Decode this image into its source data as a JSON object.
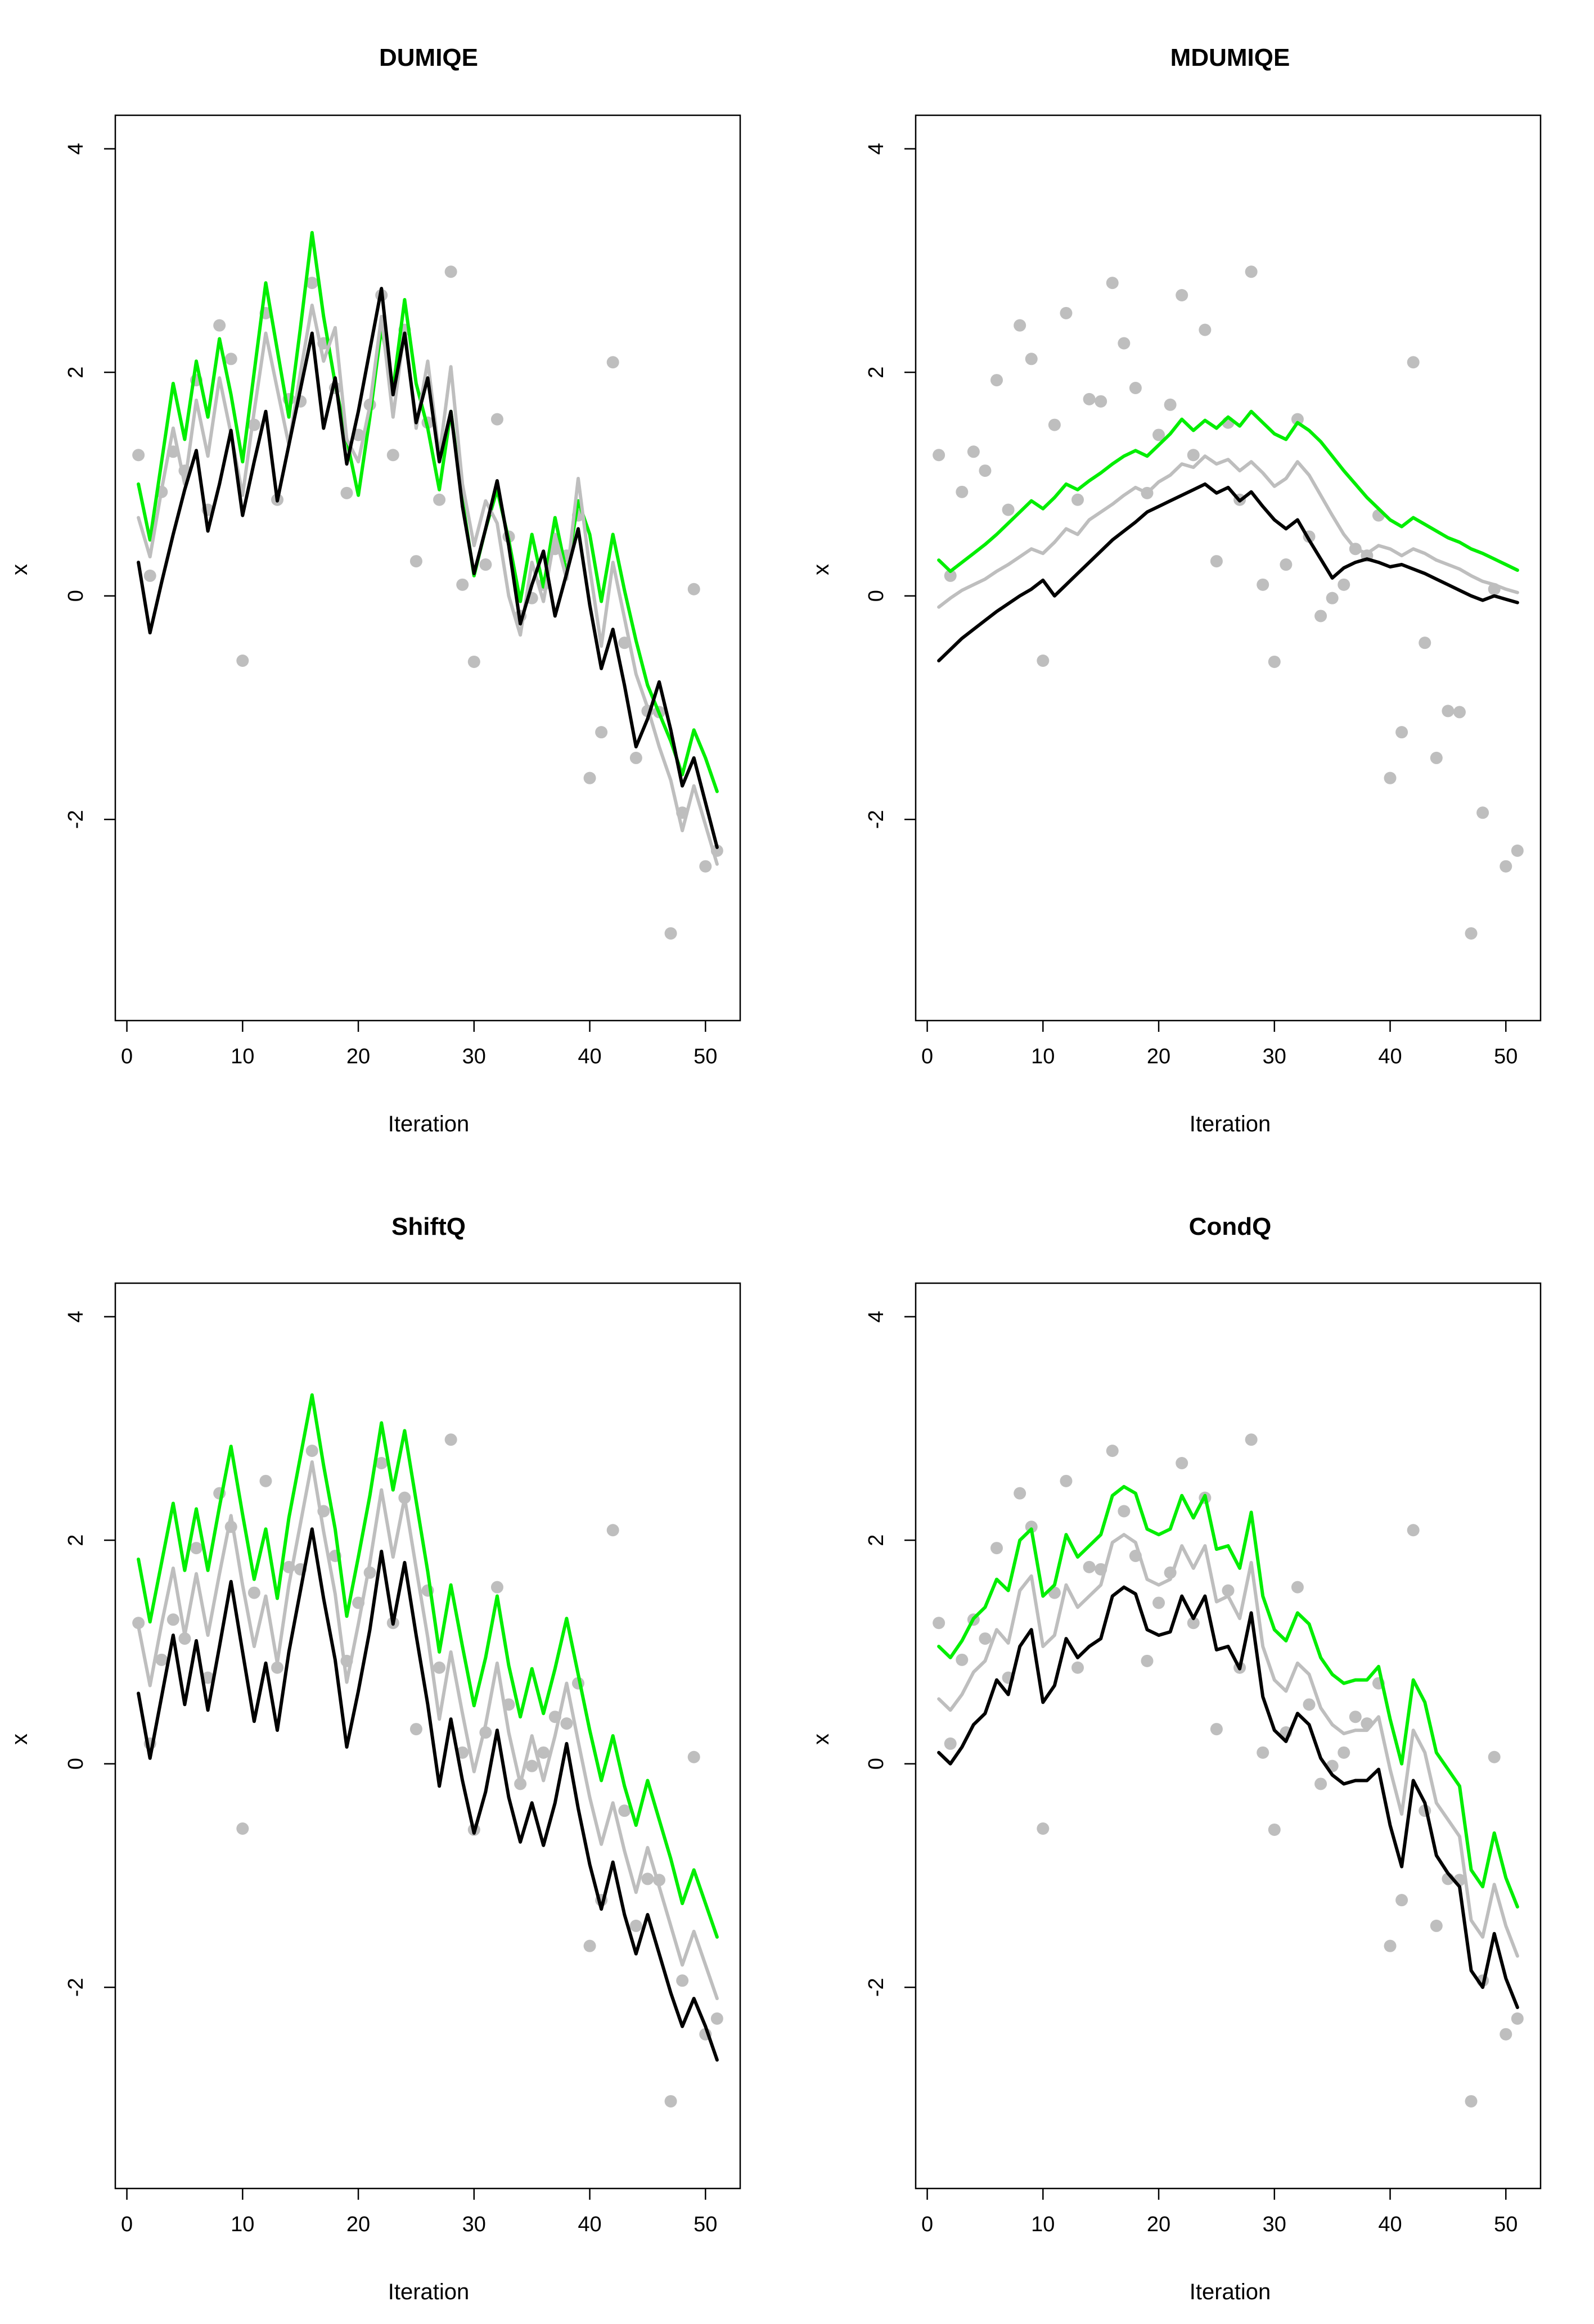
{
  "colors": {
    "points": "#bebebe",
    "green": "#00ee00",
    "gray": "#bebebe",
    "black": "#000000"
  },
  "chart_data": [
    {
      "type": "scatter",
      "title": "DUMIQE",
      "xlabel": "Iteration",
      "ylabel": "x",
      "xlim": [
        -1,
        53
      ],
      "ylim": [
        -3.8,
        4.3
      ],
      "xticks": [
        0,
        10,
        20,
        30,
        40,
        50
      ],
      "yticks": [
        -2,
        0,
        2,
        4
      ],
      "points": [
        1.26,
        0.18,
        0.93,
        1.29,
        1.12,
        1.93,
        0.77,
        2.42,
        2.12,
        -0.58,
        1.53,
        2.53,
        0.86,
        1.76,
        1.74,
        2.8,
        2.26,
        1.86,
        0.92,
        1.44,
        1.71,
        2.69,
        1.26,
        2.38,
        0.31,
        1.55,
        0.86,
        2.9,
        0.1,
        -0.59,
        0.28,
        1.58,
        0.53,
        -0.18,
        -0.02,
        0.1,
        0.42,
        0.36,
        0.72,
        -1.63,
        -1.22,
        2.09,
        -0.42,
        -1.45,
        -1.03,
        -1.04,
        -3.02,
        -1.94,
        0.06,
        -2.42,
        -2.28
      ],
      "series": [
        {
          "name": "green",
          "values": [
            1.0,
            0.5,
            1.2,
            1.9,
            1.4,
            2.1,
            1.6,
            2.3,
            1.8,
            1.2,
            2.0,
            2.8,
            2.2,
            1.6,
            2.4,
            3.25,
            2.5,
            1.9,
            1.4,
            0.9,
            1.6,
            2.4,
            1.85,
            2.65,
            1.9,
            1.5,
            0.95,
            1.65,
            0.85,
            0.18,
            0.6,
            0.95,
            0.5,
            -0.05,
            0.55,
            0.08,
            0.7,
            0.2,
            0.85,
            0.55,
            -0.05,
            0.55,
            0.05,
            -0.4,
            -0.8,
            -1.05,
            -1.3,
            -1.6,
            -1.2,
            -1.45,
            -1.75
          ]
        },
        {
          "name": "gray",
          "values": [
            0.7,
            0.35,
            0.95,
            1.5,
            1.0,
            1.75,
            1.25,
            1.95,
            1.45,
            0.9,
            1.65,
            2.35,
            1.85,
            1.35,
            2.0,
            2.6,
            2.1,
            2.4,
            1.4,
            1.2,
            1.7,
            2.5,
            1.6,
            2.4,
            1.5,
            2.1,
            1.25,
            2.05,
            1.0,
            0.45,
            0.85,
            0.65,
            0.0,
            -0.35,
            0.3,
            -0.05,
            0.55,
            0.15,
            1.05,
            0.25,
            -0.45,
            0.3,
            -0.2,
            -0.7,
            -1.0,
            -1.35,
            -1.65,
            -2.1,
            -1.7,
            -2.05,
            -2.4
          ]
        },
        {
          "name": "black",
          "values": [
            0.3,
            -0.33,
            0.12,
            0.55,
            0.95,
            1.3,
            0.58,
            1.0,
            1.48,
            0.72,
            1.2,
            1.65,
            0.85,
            1.35,
            1.85,
            2.35,
            1.5,
            1.95,
            1.18,
            1.65,
            2.2,
            2.75,
            1.8,
            2.35,
            1.55,
            1.95,
            1.2,
            1.65,
            0.8,
            0.2,
            0.6,
            1.03,
            0.45,
            -0.25,
            0.1,
            0.4,
            -0.18,
            0.2,
            0.6,
            -0.08,
            -0.65,
            -0.3,
            -0.8,
            -1.35,
            -1.1,
            -0.77,
            -1.2,
            -1.7,
            -1.45,
            -1.85,
            -2.25
          ]
        }
      ]
    },
    {
      "type": "scatter",
      "title": "MDUMIQE",
      "xlabel": "Iteration",
      "ylabel": "x",
      "xlim": [
        -1,
        53
      ],
      "ylim": [
        -3.8,
        4.3
      ],
      "xticks": [
        0,
        10,
        20,
        30,
        40,
        50
      ],
      "yticks": [
        -2,
        0,
        2,
        4
      ],
      "points": [
        1.26,
        0.18,
        0.93,
        1.29,
        1.12,
        1.93,
        0.77,
        2.42,
        2.12,
        -0.58,
        1.53,
        2.53,
        0.86,
        1.76,
        1.74,
        2.8,
        2.26,
        1.86,
        0.92,
        1.44,
        1.71,
        2.69,
        1.26,
        2.38,
        0.31,
        1.55,
        0.86,
        2.9,
        0.1,
        -0.59,
        0.28,
        1.58,
        0.53,
        -0.18,
        -0.02,
        0.1,
        0.42,
        0.36,
        0.72,
        -1.63,
        -1.22,
        2.09,
        -0.42,
        -1.45,
        -1.03,
        -1.04,
        -3.02,
        -1.94,
        0.06,
        -2.42,
        -2.28
      ],
      "series": [
        {
          "name": "green",
          "values": [
            0.32,
            0.22,
            0.3,
            0.38,
            0.46,
            0.55,
            0.65,
            0.75,
            0.85,
            0.78,
            0.88,
            1.0,
            0.95,
            1.03,
            1.1,
            1.18,
            1.25,
            1.3,
            1.25,
            1.35,
            1.45,
            1.58,
            1.48,
            1.57,
            1.5,
            1.6,
            1.52,
            1.65,
            1.55,
            1.45,
            1.4,
            1.55,
            1.48,
            1.38,
            1.25,
            1.12,
            1.0,
            0.88,
            0.78,
            0.68,
            0.62,
            0.7,
            0.64,
            0.58,
            0.52,
            0.48,
            0.42,
            0.38,
            0.33,
            0.28,
            0.23
          ]
        },
        {
          "name": "gray",
          "values": [
            -0.1,
            -0.02,
            0.05,
            0.1,
            0.15,
            0.22,
            0.28,
            0.35,
            0.42,
            0.38,
            0.48,
            0.6,
            0.55,
            0.68,
            0.75,
            0.82,
            0.9,
            0.97,
            0.92,
            1.02,
            1.08,
            1.18,
            1.15,
            1.25,
            1.18,
            1.22,
            1.12,
            1.2,
            1.1,
            0.98,
            1.05,
            1.2,
            1.08,
            0.9,
            0.72,
            0.55,
            0.42,
            0.38,
            0.45,
            0.42,
            0.36,
            0.42,
            0.38,
            0.32,
            0.28,
            0.24,
            0.18,
            0.13,
            0.1,
            0.06,
            0.03
          ]
        },
        {
          "name": "black",
          "values": [
            -0.58,
            -0.48,
            -0.38,
            -0.3,
            -0.22,
            -0.14,
            -0.07,
            0.0,
            0.06,
            0.14,
            0.0,
            0.1,
            0.2,
            0.3,
            0.4,
            0.5,
            0.58,
            0.66,
            0.75,
            0.8,
            0.85,
            0.9,
            0.95,
            1.0,
            0.92,
            0.97,
            0.85,
            0.93,
            0.8,
            0.68,
            0.6,
            0.68,
            0.5,
            0.33,
            0.16,
            0.25,
            0.3,
            0.33,
            0.3,
            0.26,
            0.28,
            0.24,
            0.2,
            0.15,
            0.1,
            0.05,
            0.0,
            -0.04,
            0.0,
            -0.03,
            -0.06
          ]
        }
      ]
    },
    {
      "type": "scatter",
      "title": "ShiftQ",
      "xlabel": "Iteration",
      "ylabel": "x",
      "xlim": [
        -1,
        53
      ],
      "ylim": [
        -3.8,
        4.3
      ],
      "xticks": [
        0,
        10,
        20,
        30,
        40,
        50
      ],
      "yticks": [
        -2,
        0,
        2,
        4
      ],
      "points": [
        1.26,
        0.18,
        0.93,
        1.29,
        1.12,
        1.93,
        0.77,
        2.42,
        2.12,
        -0.58,
        1.53,
        2.53,
        0.86,
        1.76,
        1.74,
        2.8,
        2.26,
        1.86,
        0.92,
        1.44,
        1.71,
        2.69,
        1.26,
        2.38,
        0.31,
        1.55,
        0.86,
        2.9,
        0.1,
        -0.59,
        0.28,
        1.58,
        0.53,
        -0.18,
        -0.02,
        0.1,
        0.42,
        0.36,
        0.72,
        -1.63,
        -1.22,
        2.09,
        -0.42,
        -1.45,
        -1.03,
        -1.04,
        -3.02,
        -1.94,
        0.06,
        -2.42,
        -2.28
      ],
      "series": [
        {
          "name": "green",
          "values": [
            1.83,
            1.27,
            1.8,
            2.33,
            1.73,
            2.28,
            1.73,
            2.3,
            2.84,
            2.23,
            1.65,
            2.1,
            1.48,
            2.2,
            2.75,
            3.3,
            2.67,
            2.1,
            1.32,
            1.85,
            2.4,
            3.05,
            2.45,
            2.98,
            2.35,
            1.72,
            1.0,
            1.6,
            1.05,
            0.52,
            0.95,
            1.5,
            0.88,
            0.42,
            0.85,
            0.45,
            0.85,
            1.3,
            0.8,
            0.3,
            -0.15,
            0.25,
            -0.2,
            -0.55,
            -0.15,
            -0.5,
            -0.85,
            -1.25,
            -0.95,
            -1.25,
            -1.55
          ]
        },
        {
          "name": "gray",
          "values": [
            1.23,
            0.7,
            1.25,
            1.75,
            1.15,
            1.7,
            1.15,
            1.7,
            2.22,
            1.6,
            1.05,
            1.5,
            0.9,
            1.6,
            2.15,
            2.7,
            2.08,
            1.52,
            0.73,
            1.25,
            1.8,
            2.45,
            1.85,
            2.38,
            1.75,
            1.13,
            0.4,
            1.0,
            0.45,
            -0.07,
            0.35,
            0.9,
            0.28,
            -0.18,
            0.25,
            -0.15,
            0.25,
            0.72,
            0.2,
            -0.3,
            -0.72,
            -0.35,
            -0.78,
            -1.15,
            -0.75,
            -1.1,
            -1.45,
            -1.8,
            -1.5,
            -1.8,
            -2.1
          ]
        },
        {
          "name": "black",
          "values": [
            0.63,
            0.05,
            0.6,
            1.15,
            0.53,
            1.1,
            0.48,
            1.05,
            1.63,
            1.0,
            0.38,
            0.9,
            0.3,
            1.0,
            1.55,
            2.1,
            1.48,
            0.93,
            0.15,
            0.65,
            1.2,
            1.9,
            1.25,
            1.8,
            1.15,
            0.53,
            -0.2,
            0.4,
            -0.15,
            -0.62,
            -0.25,
            0.3,
            -0.3,
            -0.7,
            -0.35,
            -0.73,
            -0.35,
            0.18,
            -0.4,
            -0.9,
            -1.3,
            -0.88,
            -1.35,
            -1.7,
            -1.35,
            -1.7,
            -2.05,
            -2.35,
            -2.1,
            -2.35,
            -2.65
          ]
        }
      ]
    },
    {
      "type": "scatter",
      "title": "CondQ",
      "xlabel": "Iteration",
      "ylabel": "x",
      "xlim": [
        -1,
        53
      ],
      "ylim": [
        -3.8,
        4.3
      ],
      "xticks": [
        0,
        10,
        20,
        30,
        40,
        50
      ],
      "yticks": [
        -2,
        0,
        2,
        4
      ],
      "points": [
        1.26,
        0.18,
        0.93,
        1.29,
        1.12,
        1.93,
        0.77,
        2.42,
        2.12,
        -0.58,
        1.53,
        2.53,
        0.86,
        1.76,
        1.74,
        2.8,
        2.26,
        1.86,
        0.92,
        1.44,
        1.71,
        2.69,
        1.26,
        2.38,
        0.31,
        1.55,
        0.86,
        2.9,
        0.1,
        -0.59,
        0.28,
        1.58,
        0.53,
        -0.18,
        -0.02,
        0.1,
        0.42,
        0.36,
        0.72,
        -1.63,
        -1.22,
        2.09,
        -0.42,
        -1.45,
        -1.03,
        -1.04,
        -3.02,
        -1.94,
        0.06,
        -2.42,
        -2.28
      ],
      "series": [
        {
          "name": "green",
          "values": [
            1.05,
            0.95,
            1.1,
            1.3,
            1.4,
            1.65,
            1.55,
            2.0,
            2.1,
            1.5,
            1.6,
            2.05,
            1.85,
            1.95,
            2.05,
            2.4,
            2.48,
            2.42,
            2.1,
            2.05,
            2.1,
            2.4,
            2.2,
            2.4,
            1.92,
            1.95,
            1.75,
            2.25,
            1.5,
            1.2,
            1.1,
            1.35,
            1.25,
            0.95,
            0.8,
            0.72,
            0.75,
            0.75,
            0.87,
            0.4,
            0.0,
            0.75,
            0.55,
            0.1,
            -0.05,
            -0.2,
            -0.95,
            -1.1,
            -0.62,
            -1.02,
            -1.28
          ]
        },
        {
          "name": "gray",
          "values": [
            0.58,
            0.48,
            0.62,
            0.82,
            0.92,
            1.2,
            1.08,
            1.55,
            1.68,
            1.05,
            1.15,
            1.6,
            1.4,
            1.5,
            1.6,
            1.98,
            2.05,
            1.98,
            1.65,
            1.6,
            1.65,
            1.95,
            1.75,
            1.95,
            1.45,
            1.5,
            1.3,
            1.8,
            1.05,
            0.75,
            0.65,
            0.9,
            0.8,
            0.5,
            0.35,
            0.27,
            0.3,
            0.3,
            0.42,
            -0.05,
            -0.45,
            0.3,
            0.1,
            -0.35,
            -0.5,
            -0.65,
            -1.4,
            -1.55,
            -1.08,
            -1.45,
            -1.72
          ]
        },
        {
          "name": "black",
          "values": [
            0.1,
            0.0,
            0.15,
            0.35,
            0.45,
            0.75,
            0.62,
            1.05,
            1.2,
            0.55,
            0.7,
            1.12,
            0.95,
            1.05,
            1.12,
            1.5,
            1.58,
            1.52,
            1.2,
            1.15,
            1.18,
            1.5,
            1.3,
            1.5,
            1.02,
            1.05,
            0.85,
            1.35,
            0.6,
            0.3,
            0.2,
            0.45,
            0.35,
            0.05,
            -0.1,
            -0.18,
            -0.15,
            -0.15,
            -0.05,
            -0.55,
            -0.92,
            -0.15,
            -0.35,
            -0.82,
            -0.98,
            -1.1,
            -1.85,
            -2.0,
            -1.52,
            -1.92,
            -2.18
          ]
        }
      ]
    }
  ]
}
